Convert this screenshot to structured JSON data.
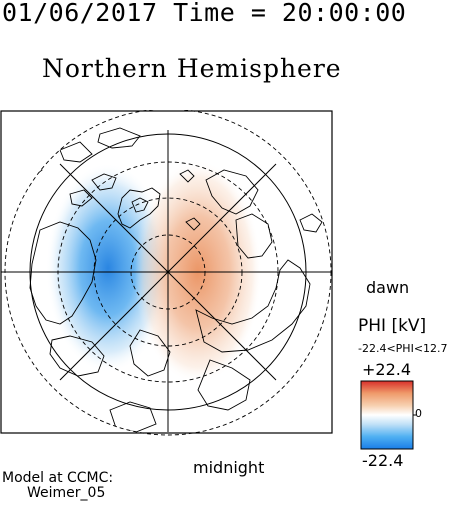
{
  "header": {
    "datetime": "01/06/2017 Time = 20:00:00",
    "hemisphere": "Northern Hemisphere"
  },
  "map": {
    "label_dawn": "dawn",
    "label_midnight": "midnight",
    "potential_cells": [
      {
        "sign": "negative",
        "color": "#3aa0ea",
        "location": "dusk / evening side"
      },
      {
        "sign": "positive",
        "color": "#e9925a",
        "location": "dawn / morning side"
      }
    ]
  },
  "legend": {
    "title": "PHI [kV]",
    "range_text": "-22.4<PHI<12.7",
    "max_label": "+22.4",
    "min_label": "-22.4",
    "zero_label": "0",
    "colormap": [
      "#1a7ee8",
      "#4fb0f2",
      "#bfe0f7",
      "#ffffff",
      "#f7d0b0",
      "#ef9a6a",
      "#d9302b"
    ]
  },
  "footer": {
    "model_line1": "Model at CCMC:",
    "model_line2": "Weimer_05"
  }
}
